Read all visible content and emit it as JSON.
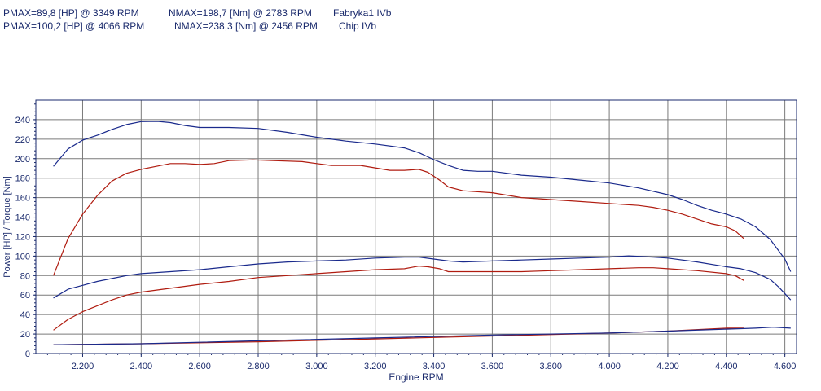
{
  "header": {
    "lines": [
      {
        "pmax": "PMAX=89,8 [HP] @ 3349 RPM",
        "nmax": "NMAX=198,7 [Nm] @ 2783 RPM",
        "label": "Fabryka1 IVb"
      },
      {
        "pmax": "PMAX=100,2 [HP] @ 4066 RPM",
        "nmax": "NMAX=238,3 [Nm] @ 2456 RPM",
        "label": "Chip IVb"
      }
    ]
  },
  "colors": {
    "original": "#b01c10",
    "chip": "#1a2a8c",
    "grid": "#7a7a7a",
    "axis": "#1a2a6c"
  },
  "chart_data": {
    "type": "line",
    "xlabel": "Engine RPM",
    "ylabel": "Power [HP] / Torque [Nm]",
    "xlim": [
      2040,
      4640
    ],
    "ylim": [
      0,
      260
    ],
    "grid": true,
    "xticks": [
      2200,
      2400,
      2600,
      2800,
      3000,
      3200,
      3400,
      3600,
      3800,
      4000,
      4200,
      4400,
      4600
    ],
    "xtick_labels": [
      "2.200",
      "2.400",
      "2.600",
      "2.800",
      "3.000",
      "3.200",
      "3.400",
      "3.600",
      "3.800",
      "4.000",
      "4.200",
      "4.400",
      "4.600"
    ],
    "yticks": [
      0,
      20,
      40,
      60,
      80,
      100,
      120,
      140,
      160,
      180,
      200,
      220,
      240
    ],
    "ytick_labels": [
      "0",
      "20",
      "40",
      "60",
      "80",
      "100",
      "120",
      "140",
      "160",
      "180",
      "200",
      "220",
      "240"
    ],
    "series": [
      {
        "name": "Fabryka1 IVb",
        "color": "#b01c10",
        "kind": "torque",
        "x": [
          2100,
          2150,
          2200,
          2250,
          2300,
          2350,
          2400,
          2450,
          2500,
          2550,
          2600,
          2650,
          2700,
          2783,
          2850,
          2950,
          3000,
          3050,
          3150,
          3250,
          3300,
          3349,
          3380,
          3420,
          3450,
          3500,
          3600,
          3700,
          3800,
          3900,
          4000,
          4100,
          4150,
          4200,
          4250,
          4300,
          4350,
          4400,
          4430,
          4460
        ],
        "y": [
          80,
          118,
          143,
          162,
          177,
          185,
          189,
          192,
          195,
          195,
          194,
          195,
          198,
          198.7,
          198,
          197,
          195,
          193,
          193,
          188,
          188,
          189,
          186,
          178,
          171,
          167,
          165,
          160,
          158,
          156,
          154,
          152,
          150,
          147,
          143,
          138,
          133,
          130,
          126,
          118
        ]
      },
      {
        "name": "Chip IVb",
        "color": "#1a2a8c",
        "kind": "torque",
        "x": [
          2100,
          2150,
          2200,
          2250,
          2300,
          2350,
          2400,
          2456,
          2500,
          2550,
          2600,
          2700,
          2800,
          2900,
          3000,
          3100,
          3200,
          3300,
          3350,
          3400,
          3450,
          3500,
          3550,
          3600,
          3700,
          3800,
          3900,
          4000,
          4100,
          4200,
          4250,
          4300,
          4350,
          4400,
          4450,
          4500,
          4550,
          4600,
          4620
        ],
        "y": [
          192,
          210,
          219,
          224,
          230,
          235,
          238,
          238.3,
          237,
          234,
          232,
          232,
          231,
          227,
          222,
          218,
          215,
          211,
          206,
          199,
          193,
          188,
          187,
          187,
          183,
          181,
          178,
          175,
          170,
          163,
          158,
          152,
          147,
          143,
          138,
          130,
          117,
          97,
          84
        ]
      },
      {
        "name": "Fabryka1 IVb",
        "color": "#b01c10",
        "kind": "power",
        "x": [
          2100,
          2150,
          2200,
          2250,
          2300,
          2350,
          2400,
          2500,
          2600,
          2700,
          2800,
          2900,
          3000,
          3100,
          3200,
          3300,
          3349,
          3380,
          3420,
          3450,
          3500,
          3600,
          3700,
          3800,
          3900,
          4000,
          4100,
          4150,
          4200,
          4300,
          4400,
          4430,
          4460
        ],
        "y": [
          24,
          35,
          43,
          49,
          55,
          60,
          63,
          67,
          71,
          74,
          78,
          80,
          82,
          84,
          86,
          87,
          89.8,
          89,
          87,
          84,
          84,
          84,
          84,
          85,
          86,
          87,
          88,
          88,
          87,
          85,
          82,
          80,
          75
        ]
      },
      {
        "name": "Chip IVb",
        "color": "#1a2a8c",
        "kind": "power",
        "x": [
          2100,
          2150,
          2200,
          2250,
          2300,
          2350,
          2400,
          2500,
          2600,
          2700,
          2800,
          2900,
          3000,
          3100,
          3200,
          3300,
          3350,
          3400,
          3450,
          3500,
          3600,
          3700,
          3800,
          3900,
          4000,
          4066,
          4150,
          4200,
          4300,
          4400,
          4450,
          4500,
          4550,
          4580,
          4620
        ],
        "y": [
          57,
          66,
          70,
          74,
          77,
          80,
          82,
          84,
          86,
          89,
          92,
          94,
          95,
          96,
          98,
          99,
          99,
          97,
          95,
          94,
          95,
          96,
          97,
          98,
          99,
          100.2,
          99,
          98,
          94,
          89,
          87,
          83,
          76,
          68,
          55
        ]
      },
      {
        "name": "Fabryka1 IVb",
        "color": "#b01c10",
        "kind": "loss",
        "x": [
          2100,
          2400,
          2800,
          3200,
          3600,
          4000,
          4200,
          4400,
          4460
        ],
        "y": [
          9,
          10,
          12,
          15,
          18,
          21,
          23,
          26,
          26
        ]
      },
      {
        "name": "Chip IVb",
        "color": "#1a2a8c",
        "kind": "loss",
        "x": [
          2100,
          2400,
          2800,
          3200,
          3600,
          4000,
          4200,
          4400,
          4500,
          4560,
          4620
        ],
        "y": [
          9,
          10,
          13,
          16,
          19,
          21,
          23,
          25,
          26,
          27,
          26
        ]
      }
    ]
  }
}
